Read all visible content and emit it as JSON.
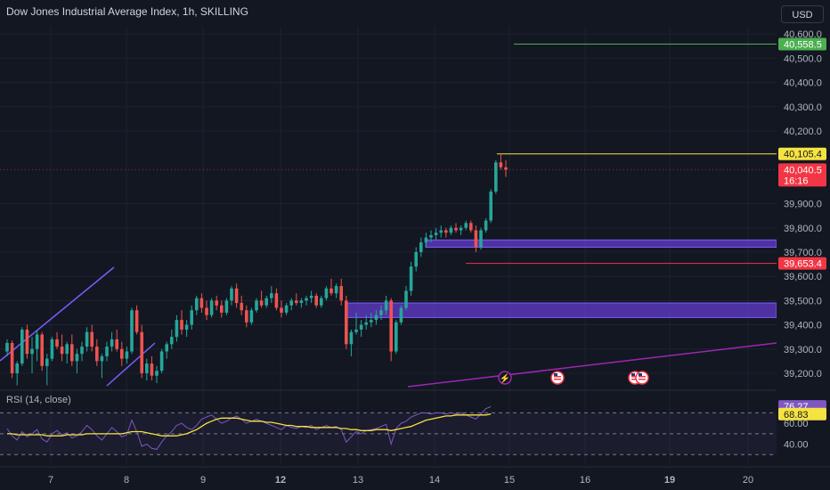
{
  "header": {
    "title": "Dow Jones Industrial Average Index, 1h, SKILLING",
    "currency_label": "USD"
  },
  "rsi_panel": {
    "label": "RSI (14, close)"
  },
  "colors": {
    "background": "#131722",
    "up": "#26a69a",
    "down": "#ef5350",
    "zone": "#6a3fd8",
    "trendline": "#9c27b0",
    "rsi_line": "#7e57c2",
    "rsi_ma": "#f5e342",
    "green_level": "#4caf50",
    "yellow_level": "#f5e342",
    "red_level": "#f23645"
  },
  "icons": [
    "lightning-event-icon",
    "us-flag-event-icon",
    "us-flag-event-icon",
    "us-flag-event-icon"
  ],
  "chart_data": [
    {
      "type": "candlestick",
      "title": "Dow Jones Industrial Average Index, 1h, SKILLING",
      "ylim": [
        39130,
        40630
      ],
      "x_ticks": [
        "7",
        "8",
        "9",
        "12",
        "13",
        "14",
        "15",
        "16",
        "19",
        "20"
      ],
      "y_ticks": [
        "40,600.0",
        "40,500.0",
        "40,400.0",
        "40,300.0",
        "40,200.0",
        "39,900.0",
        "39,800.0",
        "39,700.0",
        "39,600.0",
        "39,500.0",
        "39,400.0",
        "39,300.0",
        "39,200.0"
      ],
      "price_labels": [
        {
          "text": "40,558.5",
          "value": 40558.5,
          "kind": "green-level"
        },
        {
          "text": "40,105.4",
          "value": 40105.4,
          "kind": "yellow-level"
        },
        {
          "text": "40,040.5",
          "value": 40040.5,
          "kind": "last-price",
          "countdown": "16:16"
        },
        {
          "text": "39,653.4",
          "value": 39653.4,
          "kind": "red-level"
        }
      ],
      "zones": [
        {
          "from": 39720,
          "to": 39750
        },
        {
          "from": 39430,
          "to": 39490
        }
      ],
      "candles": [
        [
          39290,
          39340,
          39270,
          39325
        ],
        [
          39325,
          39335,
          39180,
          39200
        ],
        [
          39200,
          39250,
          39150,
          39240
        ],
        [
          39240,
          39390,
          39230,
          39380
        ],
        [
          39380,
          39400,
          39260,
          39280
        ],
        [
          39280,
          39350,
          39200,
          39300
        ],
        [
          39300,
          39380,
          39250,
          39360
        ],
        [
          39360,
          39370,
          39210,
          39230
        ],
        [
          39230,
          39280,
          39150,
          39260
        ],
        [
          39260,
          39350,
          39250,
          39340
        ],
        [
          39340,
          39370,
          39300,
          39310
        ],
        [
          39310,
          39360,
          39250,
          39280
        ],
        [
          39280,
          39330,
          39240,
          39320
        ],
        [
          39320,
          39360,
          39230,
          39250
        ],
        [
          39250,
          39300,
          39200,
          39280
        ],
        [
          39280,
          39330,
          39250,
          39310
        ],
        [
          39310,
          39390,
          39290,
          39370
        ],
        [
          39370,
          39400,
          39290,
          39310
        ],
        [
          39310,
          39340,
          39230,
          39250
        ],
        [
          39250,
          39280,
          39180,
          39270
        ],
        [
          39270,
          39330,
          39250,
          39310
        ],
        [
          39310,
          39370,
          39290,
          39340
        ],
        [
          39340,
          39380,
          39290,
          39300
        ],
        [
          39300,
          39330,
          39230,
          39260
        ],
        [
          39260,
          39310,
          39240,
          39290
        ],
        [
          39290,
          39470,
          39280,
          39460
        ],
        [
          39460,
          39480,
          39360,
          39370
        ],
        [
          39370,
          39400,
          39180,
          39200
        ],
        [
          39200,
          39260,
          39170,
          39240
        ],
        [
          39240,
          39270,
          39170,
          39190
        ],
        [
          39190,
          39230,
          39160,
          39210
        ],
        [
          39210,
          39300,
          39200,
          39290
        ],
        [
          39290,
          39330,
          39260,
          39320
        ],
        [
          39320,
          39380,
          39300,
          39350
        ],
        [
          39350,
          39440,
          39330,
          39420
        ],
        [
          39420,
          39460,
          39360,
          39380
        ],
        [
          39380,
          39420,
          39350,
          39400
        ],
        [
          39400,
          39480,
          39380,
          39460
        ],
        [
          39460,
          39520,
          39440,
          39510
        ],
        [
          39510,
          39530,
          39450,
          39470
        ],
        [
          39470,
          39500,
          39420,
          39440
        ],
        [
          39440,
          39510,
          39430,
          39500
        ],
        [
          39500,
          39520,
          39460,
          39480
        ],
        [
          39480,
          39500,
          39430,
          39450
        ],
        [
          39450,
          39510,
          39440,
          39500
        ],
        [
          39500,
          39560,
          39480,
          39550
        ],
        [
          39550,
          39570,
          39470,
          39490
        ],
        [
          39490,
          39520,
          39440,
          39460
        ],
        [
          39460,
          39480,
          39390,
          39410
        ],
        [
          39410,
          39470,
          39400,
          39460
        ],
        [
          39460,
          39510,
          39450,
          39500
        ],
        [
          39500,
          39540,
          39470,
          39480
        ],
        [
          39480,
          39520,
          39470,
          39510
        ],
        [
          39510,
          39560,
          39490,
          39530
        ],
        [
          39530,
          39550,
          39460,
          39470
        ],
        [
          39470,
          39500,
          39430,
          39450
        ],
        [
          39450,
          39490,
          39440,
          39480
        ],
        [
          39480,
          39510,
          39460,
          39500
        ],
        [
          39500,
          39530,
          39480,
          39490
        ],
        [
          39490,
          39510,
          39470,
          39500
        ],
        [
          39500,
          39520,
          39480,
          39510
        ],
        [
          39510,
          39540,
          39490,
          39520
        ],
        [
          39520,
          39530,
          39470,
          39480
        ],
        [
          39480,
          39520,
          39470,
          39510
        ],
        [
          39510,
          39560,
          39500,
          39550
        ],
        [
          39550,
          39590,
          39520,
          39530
        ],
        [
          39530,
          39570,
          39510,
          39560
        ],
        [
          39560,
          39590,
          39480,
          39500
        ],
        [
          39500,
          39520,
          39300,
          39320
        ],
        [
          39320,
          39380,
          39270,
          39370
        ],
        [
          39370,
          39450,
          39360,
          39380
        ],
        [
          39380,
          39420,
          39350,
          39400
        ],
        [
          39400,
          39440,
          39380,
          39410
        ],
        [
          39410,
          39450,
          39390,
          39420
        ],
        [
          39420,
          39460,
          39400,
          39440
        ],
        [
          39440,
          39480,
          39420,
          39460
        ],
        [
          39460,
          39520,
          39440,
          39500
        ],
        [
          39500,
          39510,
          39250,
          39290
        ],
        [
          39290,
          39420,
          39280,
          39410
        ],
        [
          39410,
          39480,
          39400,
          39470
        ],
        [
          39470,
          39560,
          39460,
          39540
        ],
        [
          39540,
          39660,
          39520,
          39640
        ],
        [
          39640,
          39720,
          39620,
          39700
        ],
        [
          39700,
          39760,
          39680,
          39740
        ],
        [
          39740,
          39780,
          39720,
          39760
        ],
        [
          39760,
          39790,
          39740,
          39770
        ],
        [
          39770,
          39800,
          39750,
          39780
        ],
        [
          39780,
          39810,
          39760,
          39790
        ],
        [
          39790,
          39800,
          39760,
          39780
        ],
        [
          39780,
          39810,
          39770,
          39800
        ],
        [
          39800,
          39820,
          39780,
          39790
        ],
        [
          39790,
          39810,
          39770,
          39800
        ],
        [
          39800,
          39830,
          39790,
          39820
        ],
        [
          39820,
          39830,
          39780,
          39790
        ],
        [
          39790,
          39810,
          39700,
          39720
        ],
        [
          39720,
          39800,
          39710,
          39790
        ],
        [
          39790,
          39840,
          39780,
          39830
        ],
        [
          39830,
          39960,
          39820,
          39950
        ],
        [
          39950,
          40080,
          39940,
          40070
        ],
        [
          40070,
          40105,
          40040,
          40050
        ],
        [
          40050,
          40080,
          40010,
          40040
        ]
      ]
    },
    {
      "type": "line",
      "title": "RSI (14, close)",
      "ylim": [
        20,
        90
      ],
      "y_ticks": [
        "60.00",
        "40.00"
      ],
      "levels": [
        70,
        50,
        30
      ],
      "series": [
        {
          "name": "RSI",
          "value_label": "76.27",
          "values": [
            55,
            48,
            44,
            52,
            47,
            50,
            54,
            45,
            42,
            50,
            53,
            49,
            51,
            46,
            48,
            52,
            58,
            54,
            48,
            44,
            50,
            56,
            52,
            47,
            49,
            63,
            52,
            38,
            40,
            36,
            35,
            42,
            48,
            52,
            58,
            60,
            56,
            54,
            58,
            64,
            66,
            68,
            64,
            60,
            62,
            65,
            67,
            64,
            60,
            62,
            64,
            62,
            60,
            58,
            56,
            54,
            58,
            56,
            55,
            57,
            56,
            58,
            54,
            56,
            58,
            56,
            57,
            54,
            42,
            47,
            52,
            50,
            53,
            54,
            55,
            57,
            59,
            40,
            55,
            60,
            62,
            66,
            68,
            70,
            70,
            69,
            70,
            70,
            69,
            70,
            69,
            70,
            68,
            66,
            64,
            69,
            74,
            76
          ]
        },
        {
          "name": "RSI-based MA",
          "value_label": "68.83",
          "values": [
            50,
            50,
            49,
            49,
            49,
            49,
            49,
            49,
            48,
            48,
            48,
            48,
            49,
            49,
            49,
            49,
            50,
            50,
            50,
            50,
            50,
            50,
            50,
            50,
            51,
            52,
            52,
            52,
            51,
            50,
            49,
            48,
            48,
            48,
            48,
            49,
            50,
            52,
            54,
            57,
            60,
            62,
            64,
            65,
            65,
            65,
            65,
            64,
            63,
            62,
            62,
            62,
            61,
            61,
            60,
            59,
            58,
            58,
            57,
            57,
            57,
            56,
            56,
            56,
            56,
            56,
            56,
            55,
            55,
            54,
            54,
            53,
            53,
            53,
            54,
            54,
            54,
            53,
            54,
            55,
            56,
            57,
            59,
            61,
            63,
            64,
            65,
            66,
            67,
            67,
            68,
            68,
            68,
            68,
            68,
            68,
            68,
            69
          ]
        }
      ]
    }
  ]
}
